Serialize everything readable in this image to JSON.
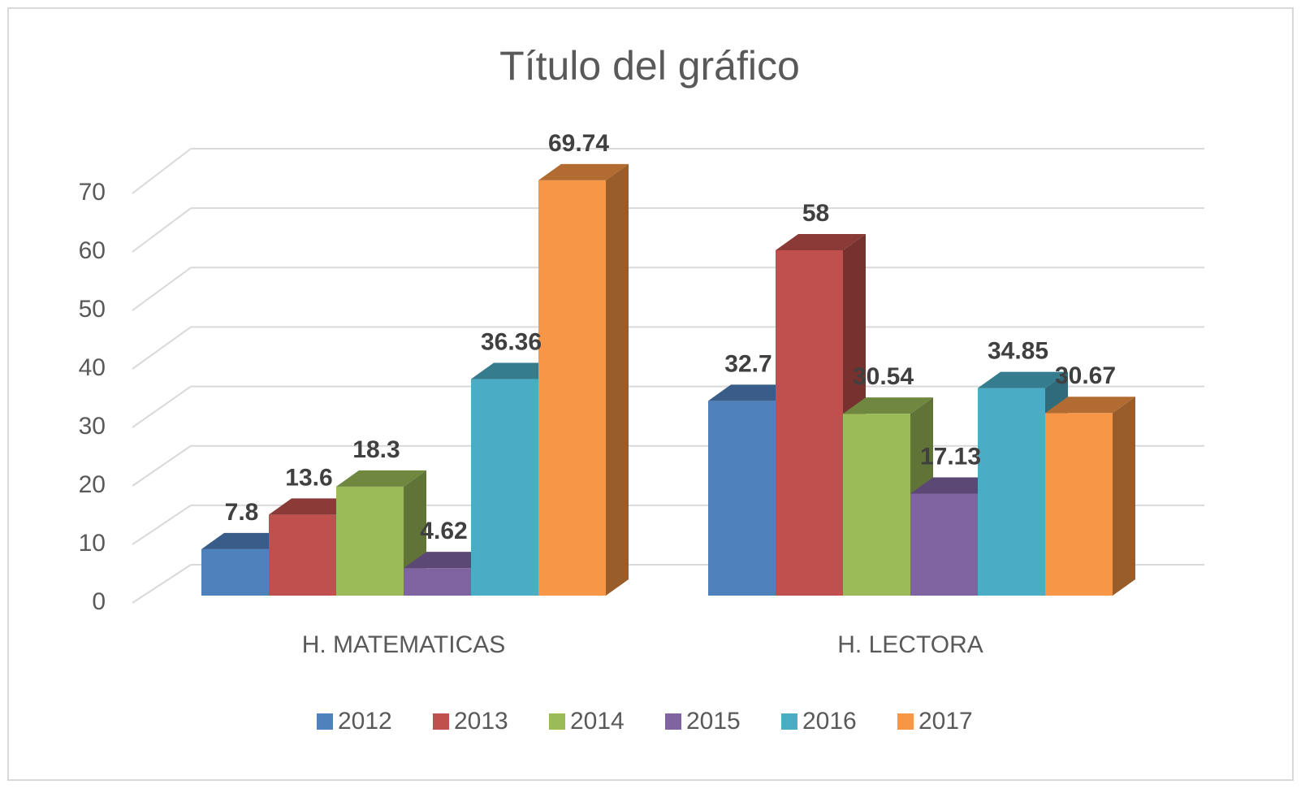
{
  "chart_data": {
    "type": "bar3d",
    "title": "Título del gráfico",
    "categories": [
      "H. MATEMATICAS",
      "H. LECTORA"
    ],
    "series": [
      {
        "name": "2012",
        "color": "#4f81bd",
        "values": [
          7.8,
          32.7
        ]
      },
      {
        "name": "2013",
        "color": "#c0504d",
        "values": [
          13.6,
          58
        ]
      },
      {
        "name": "2014",
        "color": "#9bbb59",
        "values": [
          18.3,
          30.54
        ]
      },
      {
        "name": "2015",
        "color": "#8064a2",
        "values": [
          4.62,
          17.13
        ]
      },
      {
        "name": "2016",
        "color": "#4bacc6",
        "values": [
          36.36,
          34.85
        ]
      },
      {
        "name": "2017",
        "color": "#f79646",
        "values": [
          69.74,
          30.67
        ]
      }
    ],
    "ylim": [
      0,
      70
    ],
    "yticks": [
      0,
      10,
      20,
      30,
      40,
      50,
      60,
      70
    ],
    "grid": true,
    "legend": "bottom"
  }
}
